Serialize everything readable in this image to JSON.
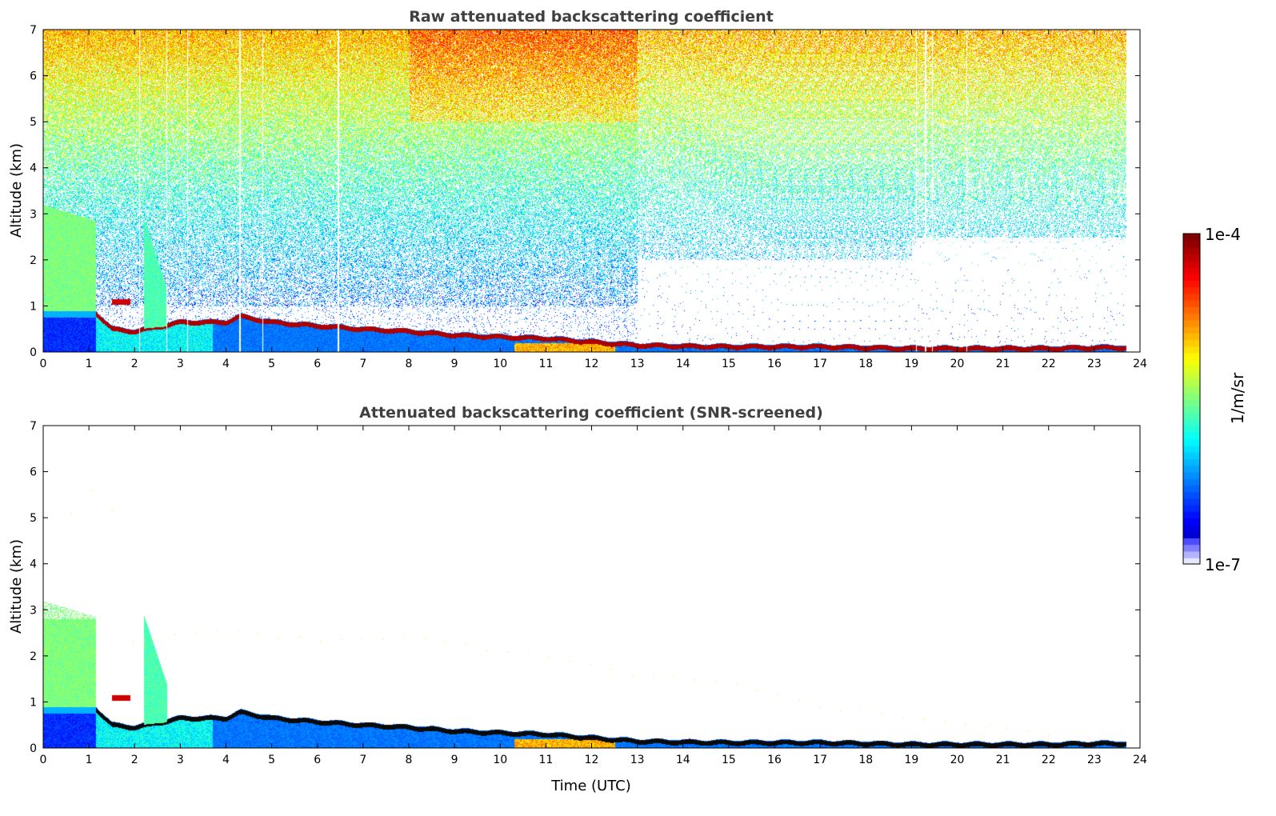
{
  "chart_data": [
    {
      "type": "heatmap",
      "title": "Raw attenuated backscattering coefficient",
      "xlabel": "",
      "ylabel": "Altitude (km)",
      "xlim": [
        0,
        24
      ],
      "ylim": [
        0,
        7
      ],
      "xticks": [
        "0",
        "1",
        "2",
        "3",
        "4",
        "5",
        "6",
        "7",
        "8",
        "9",
        "10",
        "11",
        "12",
        "13",
        "14",
        "15",
        "16",
        "17",
        "18",
        "19",
        "20",
        "21",
        "22",
        "23",
        "24"
      ],
      "yticks": [
        "0",
        "1",
        "2",
        "3",
        "4",
        "5",
        "6",
        "7"
      ],
      "screened": false
    },
    {
      "type": "heatmap",
      "title": "Attenuated backscattering coefficient (SNR-screened)",
      "xlabel": "Time (UTC)",
      "ylabel": "Altitude (km)",
      "xlim": [
        0,
        24
      ],
      "ylim": [
        0,
        7
      ],
      "xticks": [
        "0",
        "1",
        "2",
        "3",
        "4",
        "5",
        "6",
        "7",
        "8",
        "9",
        "10",
        "11",
        "12",
        "13",
        "14",
        "15",
        "16",
        "17",
        "18",
        "19",
        "20",
        "21",
        "22",
        "23",
        "24"
      ],
      "yticks": [
        "0",
        "1",
        "2",
        "3",
        "4",
        "5",
        "6",
        "7"
      ],
      "screened": true
    }
  ],
  "colorbar": {
    "label": "1/m/sr",
    "min_label": "1e-7",
    "max_label": "1e-4",
    "scale": "log",
    "colormap": "jet"
  },
  "data_end_hour": 23.7,
  "layer_top_profile": {
    "hours": [
      0,
      1.1,
      1.5,
      2.0,
      2.5,
      3.0,
      4.0,
      4.3,
      5.0,
      6.0,
      7.0,
      8.0,
      9.0,
      10.0,
      11.0,
      12.0,
      13.0,
      14.0,
      15.0,
      16.0,
      17.0,
      18.0,
      19.0,
      20.0,
      21.0,
      22.0,
      23.0,
      23.7
    ],
    "altitude_km": [
      0.9,
      0.9,
      0.5,
      0.45,
      0.55,
      0.65,
      0.65,
      0.78,
      0.65,
      0.57,
      0.5,
      0.45,
      0.37,
      0.33,
      0.3,
      0.22,
      0.15,
      0.13,
      0.12,
      0.12,
      0.12,
      0.1,
      0.08,
      0.08,
      0.08,
      0.08,
      0.1,
      0.1
    ]
  }
}
